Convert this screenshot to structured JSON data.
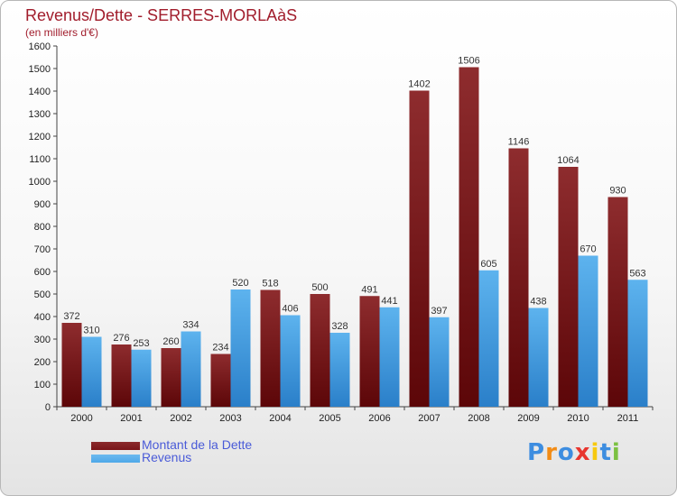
{
  "header": {
    "title": "Revenus/Dette - SERRES-MORLAàS",
    "subtitle": "(en milliers d'€)"
  },
  "legend": {
    "items": [
      {
        "label": "Montant de la Dette",
        "color": "#7a1518"
      },
      {
        "label": "Revenus",
        "color": "#4ea8e8"
      }
    ]
  },
  "logo": {
    "letters": [
      {
        "ch": "P",
        "color": "#3d8de0"
      },
      {
        "ch": "r",
        "color": "#f28c16"
      },
      {
        "ch": "o",
        "color": "#3d8de0"
      },
      {
        "ch": "x",
        "color": "#e8362f"
      },
      {
        "ch": "i",
        "color": "#f7c90f"
      },
      {
        "ch": "t",
        "color": "#3d8de0"
      },
      {
        "ch": "i",
        "color": "#7cc142"
      }
    ]
  },
  "chart_data": {
    "type": "bar",
    "categories": [
      "2000",
      "2001",
      "2002",
      "2003",
      "2004",
      "2005",
      "2006",
      "2007",
      "2008",
      "2009",
      "2010",
      "2011"
    ],
    "series": [
      {
        "name": "Montant de la Dette",
        "color": "#7a1518",
        "values": [
          372,
          276,
          260,
          234,
          518,
          500,
          491,
          1402,
          1506,
          1146,
          1064,
          930
        ]
      },
      {
        "name": "Revenus",
        "color": "#4ea8e8",
        "values": [
          310,
          253,
          334,
          520,
          406,
          328,
          441,
          397,
          605,
          438,
          670,
          563
        ]
      }
    ],
    "ylim": [
      0,
      1600
    ],
    "yticks": [
      0,
      100,
      200,
      300,
      400,
      500,
      600,
      700,
      800,
      900,
      1000,
      1100,
      1200,
      1300,
      1400,
      1500,
      1600
    ],
    "grid": false,
    "legend_position": "bottom-left"
  }
}
